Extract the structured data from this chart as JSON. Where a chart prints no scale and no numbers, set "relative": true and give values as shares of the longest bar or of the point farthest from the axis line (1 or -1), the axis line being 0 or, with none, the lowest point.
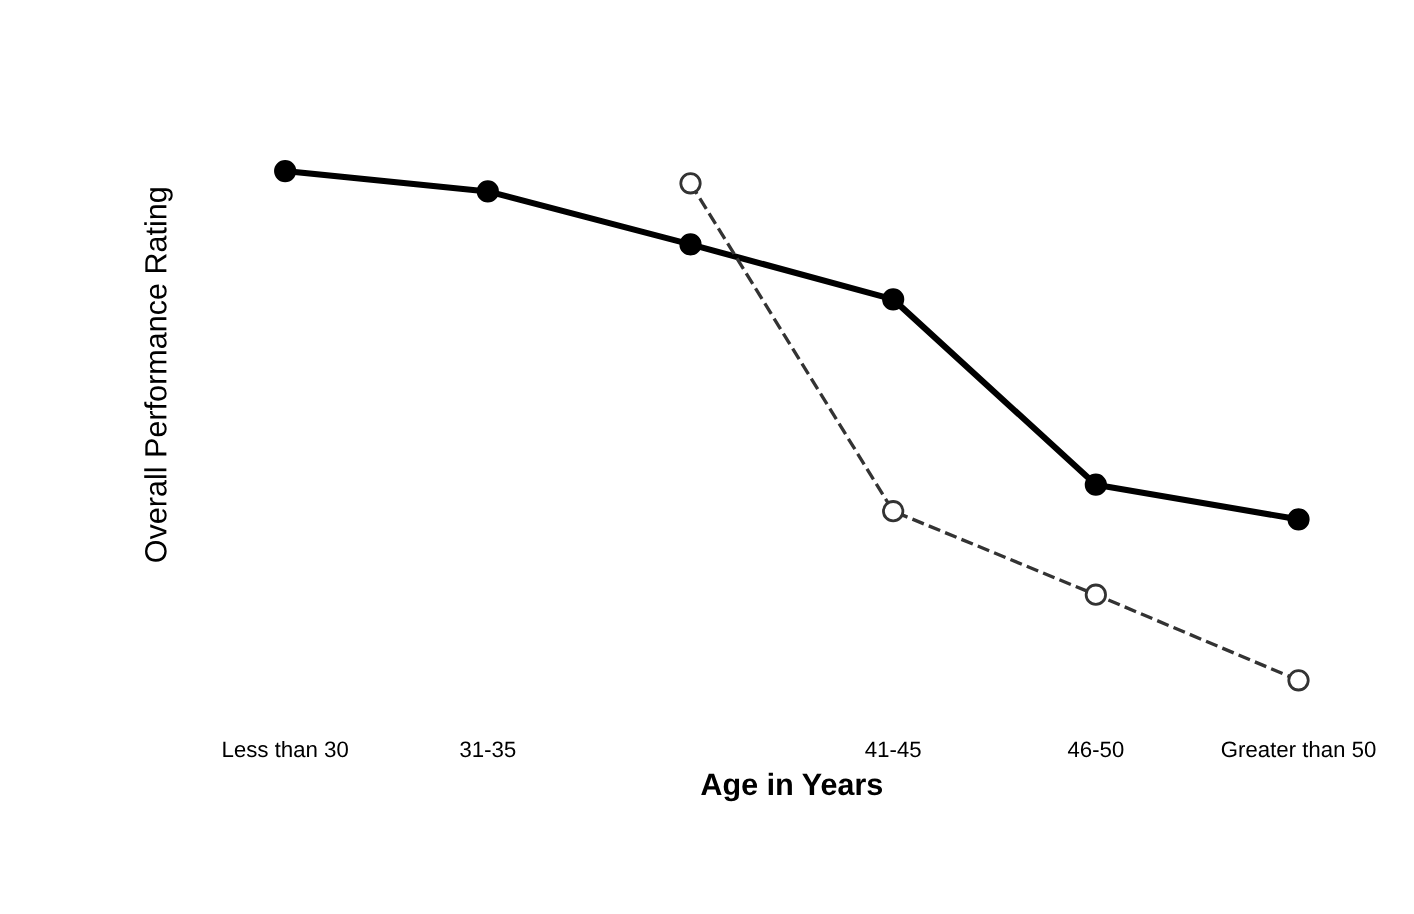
{
  "chart_data": {
    "type": "line",
    "relative": true,
    "xlabel": "Age in Years",
    "ylabel": "Overall Performance Rating",
    "categories": [
      "Less than 30",
      "31-35",
      null,
      "41-45",
      "46-50",
      "Greater than 50"
    ],
    "series": [
      {
        "color": "#000000",
        "values": [
          1,
          0.96,
          0.856,
          0.748,
          0.384,
          0.316
        ],
        "marker": "circle",
        "line_style": "solid"
      },
      {
        "color": "#333333",
        "values": [
          null,
          null,
          0.976,
          0.332,
          0.168,
          0
        ],
        "marker": "circle",
        "line_style": "dashed"
      }
    ],
    "grid": false,
    "legend": false
  }
}
